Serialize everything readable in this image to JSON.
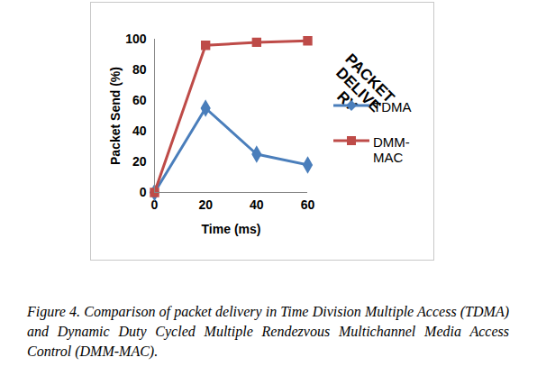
{
  "chart_data": {
    "type": "line",
    "x": [
      0,
      20,
      40,
      60
    ],
    "series": [
      {
        "name": "TDMA",
        "color": "#4a7ebb",
        "marker": "diamond",
        "values": [
          0,
          55,
          25,
          18
        ]
      },
      {
        "name": "DMM-MAC",
        "color": "#be4b48",
        "marker": "square",
        "values": [
          0,
          96,
          98,
          99
        ]
      }
    ],
    "xlabel": "Time (ms)",
    "ylabel": "Packet Send (%)",
    "xlim": [
      0,
      60
    ],
    "xticks": [
      0,
      20,
      40,
      60
    ],
    "ylim": [
      0,
      100
    ],
    "yticks": [
      0,
      20,
      40,
      60,
      80,
      100
    ],
    "annotation": "PACKET\nDELIVE\nRY",
    "legend": "right",
    "caption": "Figure 4. Comparison of packet delivery in Time Division Multiple Access (TDMA) and Dynamic Duty Cycled Multiple Rendezvous Multichannel Media Access Control (DMM-MAC)."
  }
}
